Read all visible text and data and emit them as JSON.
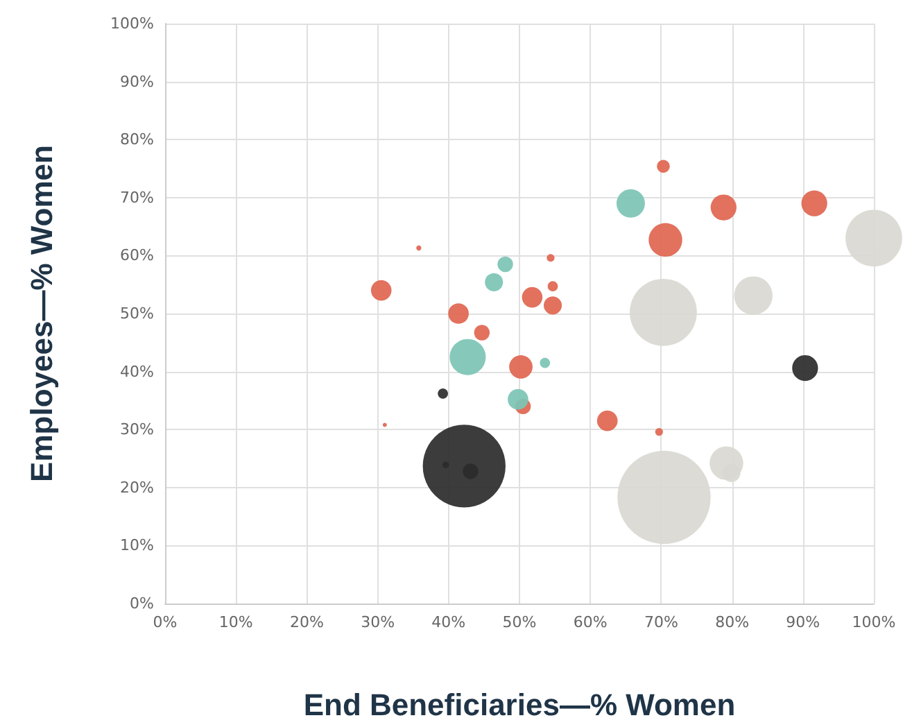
{
  "chart_data": {
    "type": "bubble",
    "xlabel": "End Beneficiaries—% Women",
    "ylabel": "Employees—% Women",
    "xlim": [
      0,
      100
    ],
    "ylim": [
      0,
      100
    ],
    "xticks": [
      {
        "value": 0,
        "label": "0%"
      },
      {
        "value": 10,
        "label": "10%"
      },
      {
        "value": 20,
        "label": "20%"
      },
      {
        "value": 30,
        "label": "30%"
      },
      {
        "value": 40,
        "label": "40%"
      },
      {
        "value": 50,
        "label": "50%"
      },
      {
        "value": 60,
        "label": "60%"
      },
      {
        "value": 70,
        "label": "70%"
      },
      {
        "value": 80,
        "label": "80%"
      },
      {
        "value": 90,
        "label": "90%"
      },
      {
        "value": 100,
        "label": "100%"
      }
    ],
    "yticks": [
      {
        "value": 0,
        "label": "0%"
      },
      {
        "value": 10,
        "label": "10%"
      },
      {
        "value": 20,
        "label": "20%"
      },
      {
        "value": 30,
        "label": "30%"
      },
      {
        "value": 40,
        "label": "40%"
      },
      {
        "value": 50,
        "label": "50%"
      },
      {
        "value": 60,
        "label": "60%"
      },
      {
        "value": 70,
        "label": "70%"
      },
      {
        "value": 80,
        "label": "80%"
      },
      {
        "value": 90,
        "label": "90%"
      },
      {
        "value": 100,
        "label": "100%"
      }
    ],
    "grid": true,
    "marker": "circle",
    "series": [
      {
        "color": "#e06550",
        "x": [
          70.3,
          70.6,
          78.8,
          91.6,
          30.5,
          35.8,
          54.4,
          54.7,
          51.8,
          54.7,
          41.4,
          44.7,
          50.2,
          50.5,
          31.0,
          62.4,
          69.7
        ],
        "values": [
          75.4,
          62.7,
          68.3,
          69.0,
          54.0,
          61.3,
          59.6,
          54.7,
          52.8,
          51.4,
          50.0,
          46.7,
          40.8,
          34.0,
          30.8,
          31.5,
          29.6
        ],
        "sizes": [
          0.019,
          0.13,
          0.077,
          0.077,
          0.049,
          0.003,
          0.007,
          0.012,
          0.049,
          0.038,
          0.049,
          0.028,
          0.063,
          0.028,
          0.002,
          0.049,
          0.007
        ]
      },
      {
        "color": "#7cc4b5",
        "x": [
          65.7,
          48.0,
          46.4,
          42.7,
          53.6,
          49.8
        ],
        "values": [
          69.0,
          58.5,
          55.4,
          42.5,
          41.5,
          35.2
        ],
        "sizes": [
          0.093,
          0.028,
          0.038,
          0.15,
          0.012,
          0.049
        ]
      },
      {
        "color": "#d9d8d1",
        "x": [
          70.3,
          83.0,
          100,
          70.4,
          79.2,
          79.9
        ],
        "values": [
          50.2,
          53.1,
          63.0,
          18.3,
          24.2,
          22.5
        ],
        "sizes": [
          0.52,
          0.17,
          0.37,
          1,
          0.13,
          0.038
        ]
      },
      {
        "color": "#2b2b2b",
        "x": [
          90.3,
          39.2,
          42.2,
          39.6,
          43.1
        ],
        "values": [
          40.6,
          36.2,
          23.7,
          23.9,
          22.8
        ],
        "sizes": [
          0.077,
          0.012,
          0.79,
          0.005,
          0.028
        ]
      }
    ]
  }
}
